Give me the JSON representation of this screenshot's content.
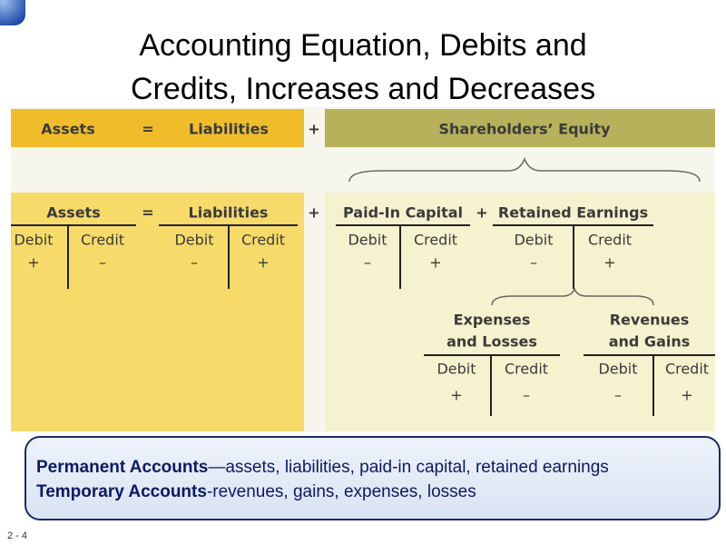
{
  "title_lines": [
    "Accounting Equation, Debits and",
    "Credits, Increases and Decreases"
  ],
  "equation": {
    "assets": "Assets",
    "equals": "=",
    "liabilities": "Liabilities",
    "plus": "+",
    "equity": "Shareholders’ Equity"
  },
  "accounts": [
    {
      "name_lines": [
        "Assets"
      ],
      "debit": "Debit",
      "credit": "Credit",
      "debit_sign": "+",
      "credit_sign": "–"
    },
    {
      "name_lines": [
        "Liabilities"
      ],
      "debit": "Debit",
      "credit": "Credit",
      "debit_sign": "–",
      "credit_sign": "+"
    },
    {
      "name_lines": [
        "Paid-In Capital"
      ],
      "debit": "Debit",
      "credit": "Credit",
      "debit_sign": "–",
      "credit_sign": "+"
    },
    {
      "name_lines": [
        "Retained Earnings"
      ],
      "debit": "Debit",
      "credit": "Credit",
      "debit_sign": "–",
      "credit_sign": "+"
    },
    {
      "name_lines": [
        "Expenses",
        "and Losses"
      ],
      "debit": "Debit",
      "credit": "Credit",
      "debit_sign": "+",
      "credit_sign": "–"
    },
    {
      "name_lines": [
        "Revenues",
        "and Gains"
      ],
      "debit": "Debit",
      "credit": "Credit",
      "debit_sign": "–",
      "credit_sign": "+"
    }
  ],
  "operators": [
    "=",
    "+",
    "+"
  ],
  "note": [
    {
      "bold": "Permanent Accounts",
      "text": "—assets, liabilities, paid-in capital, retained earnings"
    },
    {
      "bold": "Temporary Accounts",
      "text": "-revenues, gains, expenses, losses"
    }
  ],
  "page_number": "2 - 4"
}
